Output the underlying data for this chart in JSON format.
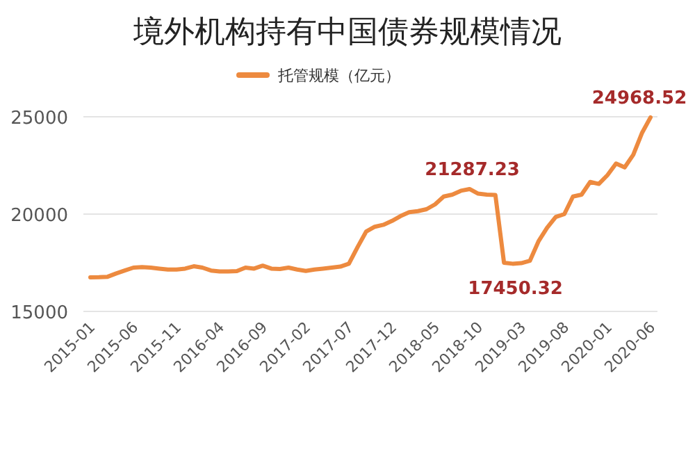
{
  "chart_data": {
    "type": "line",
    "title": "境外机构持有中国债券规模情况",
    "categories": [
      "2015-01",
      null,
      null,
      null,
      null,
      "2015-06",
      null,
      null,
      null,
      null,
      "2015-11",
      null,
      null,
      null,
      null,
      "2016-04",
      null,
      null,
      null,
      null,
      "2016-09",
      null,
      null,
      null,
      null,
      "2017-02",
      null,
      null,
      null,
      null,
      "2017-07",
      null,
      null,
      null,
      null,
      "2017-12",
      null,
      null,
      null,
      null,
      "2018-05",
      null,
      null,
      null,
      null,
      "2018-10",
      null,
      null,
      null,
      null,
      "2019-03",
      null,
      null,
      null,
      null,
      "2019-08",
      null,
      null,
      null,
      null,
      "2020-01",
      null,
      null,
      null,
      null,
      "2020-06"
    ],
    "series": [
      {
        "name": "托管规模（亿元）",
        "color": "#ed8a3f",
        "values": [
          16750,
          16760,
          16780,
          16950,
          17100,
          17250,
          17280,
          17250,
          17200,
          17150,
          17150,
          17200,
          17320,
          17250,
          17100,
          17050,
          17050,
          17070,
          17250,
          17200,
          17350,
          17200,
          17180,
          17250,
          17150,
          17080,
          17150,
          17200,
          17250,
          17300,
          17450,
          18300,
          19100,
          19350,
          19450,
          19650,
          19900,
          20100,
          20150,
          20250,
          20500,
          20900,
          21000,
          21200,
          21287.23,
          21050,
          21000,
          20980,
          17500,
          17450.32,
          17480,
          17600,
          18600,
          19300,
          19850,
          20000,
          20900,
          21000,
          21650,
          21550,
          22000,
          22600,
          22400,
          23050,
          24160,
          24968.52
        ]
      }
    ],
    "value_labels": [
      null,
      null,
      null,
      null,
      null,
      null,
      null,
      null,
      null,
      null,
      null,
      null,
      null,
      null,
      null,
      null,
      null,
      null,
      null,
      null,
      null,
      null,
      null,
      null,
      null,
      null,
      null,
      null,
      null,
      null,
      null,
      null,
      null,
      null,
      null,
      null,
      null,
      null,
      null,
      null,
      null,
      null,
      null,
      null,
      "21287.23",
      null,
      null,
      null,
      null,
      "17450.32",
      null,
      null,
      null,
      null,
      null,
      null,
      null,
      null,
      null,
      null,
      null,
      null,
      null,
      null,
      null,
      "24968.52"
    ],
    "ylim": [
      15000,
      25000
    ],
    "yticks": [
      15000,
      20000,
      25000
    ],
    "grid": "y",
    "legend": "top",
    "marker": "none",
    "line_style": "solid"
  }
}
